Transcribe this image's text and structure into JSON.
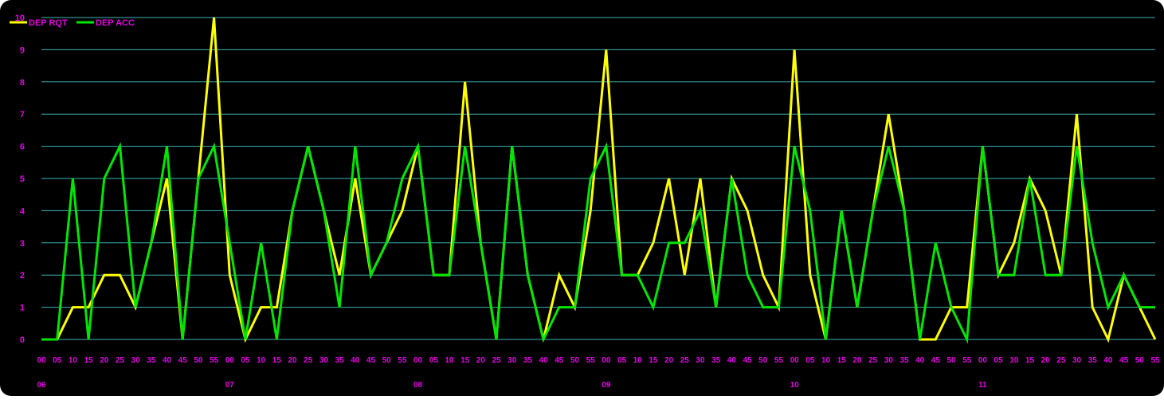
{
  "chart_data": {
    "type": "line",
    "title": "",
    "xlabel": "",
    "ylabel": "",
    "ylim": [
      0,
      10
    ],
    "yticks": [
      "0",
      "1",
      "2",
      "3",
      "4",
      "5",
      "6",
      "7",
      "8",
      "9",
      "10"
    ],
    "x_minutes": [
      "00",
      "05",
      "10",
      "15",
      "20",
      "25",
      "30",
      "35",
      "40",
      "45",
      "50",
      "55",
      "00",
      "05",
      "10",
      "15",
      "20",
      "25",
      "30",
      "35",
      "40",
      "45",
      "50",
      "55",
      "00",
      "05",
      "10",
      "15",
      "20",
      "25",
      "30",
      "35",
      "40",
      "45",
      "50",
      "55",
      "00",
      "05",
      "10",
      "15",
      "20",
      "25",
      "30",
      "35",
      "40",
      "45",
      "50",
      "55",
      "00",
      "05",
      "10",
      "15",
      "20",
      "25",
      "30",
      "35",
      "40",
      "45",
      "50",
      "55",
      "00",
      "05",
      "10",
      "15",
      "20",
      "25",
      "30",
      "35",
      "40",
      "45",
      "50",
      "55"
    ],
    "x_hours": [
      {
        "label": "06",
        "index": 0
      },
      {
        "label": "07",
        "index": 12
      },
      {
        "label": "08",
        "index": 24
      },
      {
        "label": "09",
        "index": 36
      },
      {
        "label": "10",
        "index": 48
      },
      {
        "label": "11",
        "index": 60
      }
    ],
    "grid": true,
    "legend_position": "top-left",
    "colors": {
      "background": "#000000",
      "grid": "#3fb4b4",
      "tick_text": "#e600e6"
    },
    "series": [
      {
        "name": "DEP RQT",
        "color": "#ffff00",
        "values": [
          0,
          0,
          1,
          1,
          2,
          2,
          1,
          3,
          5,
          0,
          5,
          10,
          2,
          0,
          1,
          1,
          4,
          6,
          4,
          2,
          5,
          2,
          3,
          4,
          6,
          2,
          2,
          8,
          3,
          0,
          6,
          2,
          0,
          2,
          1,
          4,
          9,
          2,
          2,
          3,
          5,
          2,
          5,
          1,
          5,
          4,
          2,
          1,
          9,
          2,
          0,
          4,
          1,
          4,
          7,
          4,
          0,
          0,
          1,
          1,
          6,
          2,
          3,
          5,
          4,
          2,
          7,
          1,
          0,
          2,
          1,
          0
        ]
      },
      {
        "name": "DEP ACC",
        "color": "#00e600",
        "values": [
          0,
          0,
          5,
          0,
          5,
          6,
          1,
          3,
          6,
          0,
          5,
          6,
          3,
          0,
          3,
          0,
          4,
          6,
          4,
          1,
          6,
          2,
          3,
          5,
          6,
          2,
          2,
          6,
          3,
          0,
          6,
          2,
          0,
          1,
          1,
          5,
          6,
          2,
          2,
          1,
          3,
          3,
          4,
          1,
          5,
          2,
          1,
          1,
          6,
          4,
          0,
          4,
          1,
          4,
          6,
          4,
          0,
          3,
          1,
          0,
          6,
          2,
          2,
          5,
          2,
          2,
          6,
          3,
          1,
          2,
          1,
          1
        ]
      }
    ]
  }
}
